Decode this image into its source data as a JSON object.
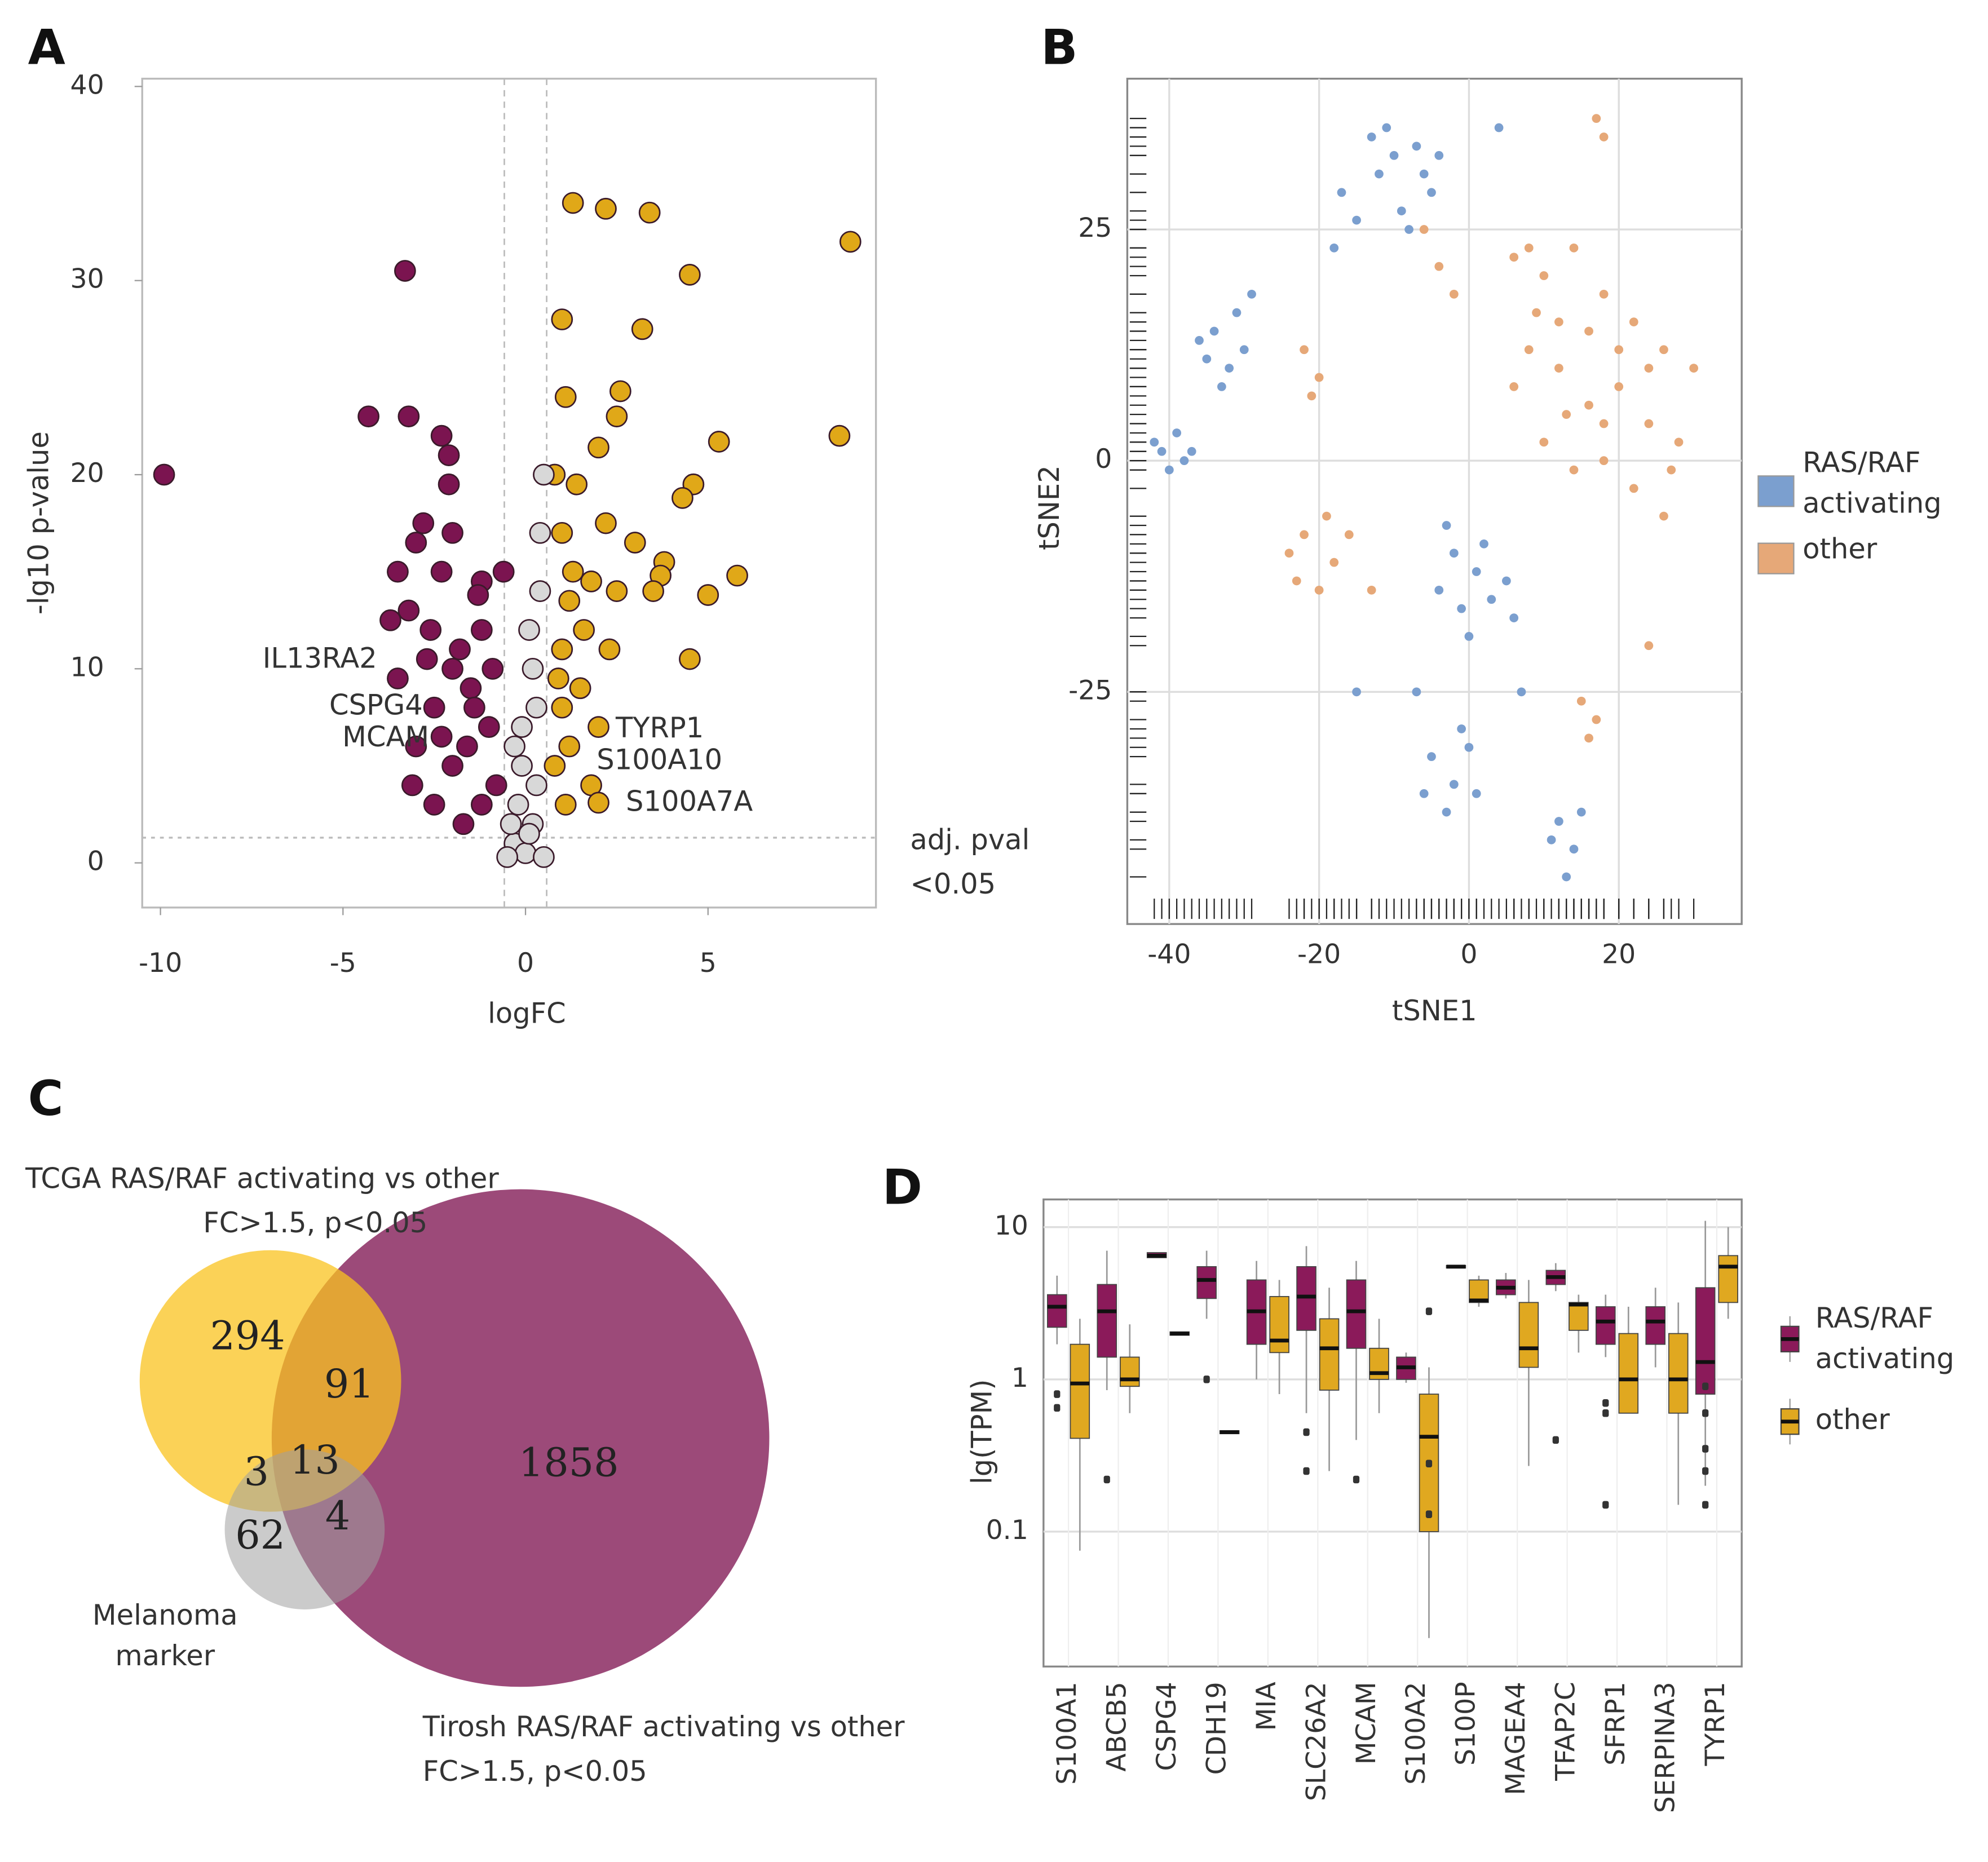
{
  "chart_data": [
    {
      "type": "scatter",
      "panel": "A",
      "x_label": "logFC",
      "y_label": "-lg10 p-value",
      "xlim": [
        -10.5,
        9.6
      ],
      "ylim": [
        -2.3,
        40.4
      ],
      "xticks": [
        -10,
        -5,
        0,
        5
      ],
      "yticks": [
        0,
        10,
        20,
        30,
        40
      ],
      "vlines": [
        -0.58,
        0.58
      ],
      "hline": 1.3,
      "annotations": [
        "IL13RA2",
        "CSPG4",
        "MCAM",
        "TYRP1",
        "S100A10",
        "S100A7A",
        "adj. pval",
        "<0.05"
      ],
      "series": [
        {
          "color": "#7b1450",
          "x": [
            -9.9,
            -3.3,
            -4.3,
            -3.2,
            -2.3,
            -2.1,
            -2.1,
            -2.8,
            -3.0,
            -2.0,
            -3.5,
            -2.3,
            -0.6,
            -1.2,
            -1.3,
            -3.2,
            -3.7,
            -2.6,
            -3.5,
            -2.0,
            -2.5,
            -1.5,
            -3.0,
            -2.0,
            -3.1,
            -2.5,
            -1.2,
            -1.6,
            -1.0,
            -1.8,
            -1.2,
            -0.9,
            -2.3,
            -1.7,
            -0.8,
            -2.7,
            -1.4
          ],
          "y": [
            20,
            30.5,
            23,
            23,
            22,
            21,
            19.5,
            17.5,
            16.5,
            17,
            15,
            15,
            15,
            14.5,
            13.8,
            13,
            12.5,
            12,
            9.5,
            10,
            8,
            9,
            6,
            5,
            4,
            3,
            3,
            6,
            7,
            11,
            12,
            10,
            6.5,
            2,
            4,
            10.5,
            8
          ]
        },
        {
          "color": "#e0a818",
          "x": [
            1.3,
            2.2,
            3.4,
            8.9,
            4.5,
            1.0,
            3.2,
            2.6,
            1.1,
            2.5,
            8.6,
            5.3,
            2.0,
            0.8,
            4.6,
            4.3,
            1.4,
            2.2,
            1.0,
            3.0,
            3.8,
            3.7,
            5.8,
            2.5,
            1.8,
            3.5,
            5.0,
            1.2,
            4.5,
            1.6,
            2.3,
            1.0,
            1.5,
            1.0,
            2.0,
            1.2,
            1.8,
            1.1,
            0.8,
            2.0,
            0.9,
            1.3
          ],
          "y": [
            34,
            33.7,
            33.5,
            32,
            30.3,
            28,
            27.5,
            24.3,
            24,
            23,
            22,
            21.7,
            21.4,
            20,
            19.5,
            18.8,
            19.5,
            17.5,
            17,
            16.5,
            15.5,
            14.8,
            14.8,
            14,
            14.5,
            14,
            13.8,
            13.5,
            10.5,
            12,
            11,
            11,
            9,
            8,
            7,
            6,
            4,
            3,
            5,
            3.1,
            9.5,
            15
          ]
        },
        {
          "color": "#d8d8d8",
          "x": [
            -0.3,
            0.2,
            -0.1,
            0.3,
            0.1,
            -0.2,
            0.4,
            0.5,
            0.0,
            -0.4,
            0.3,
            0.2,
            -0.1,
            0.4,
            -0.3,
            0.1,
            -0.5,
            0.5
          ],
          "y": [
            1,
            2,
            5,
            8,
            12,
            3,
            17,
            20,
            0.5,
            2,
            4,
            10,
            7,
            14,
            6,
            1.5,
            0.3,
            0.3
          ]
        }
      ]
    },
    {
      "type": "scatter",
      "panel": "B",
      "x_label": "tSNE1",
      "y_label": "tSNE2",
      "rug": true,
      "grid": true,
      "xlim": [
        -45.6,
        36.4
      ],
      "ylim": [
        -50.1,
        41.3
      ],
      "xticks": [
        -40,
        -20,
        0,
        20
      ],
      "yticks": [
        -25,
        0,
        25
      ],
      "series": [
        {
          "name": "RAS/RAF activating",
          "color": "#7b9fcf",
          "x": [
            -10,
            -7,
            -5,
            -9,
            -12,
            -6,
            -8,
            -11,
            -4,
            -13,
            -17,
            -15,
            -18,
            -34,
            -31,
            -32,
            -35,
            -30,
            -33,
            -29,
            -36,
            -41,
            -39,
            -38,
            -40,
            -37,
            -42,
            -2,
            1,
            3,
            -1,
            2,
            5,
            -4,
            0,
            6,
            -3,
            -5,
            -2,
            0,
            -3,
            1,
            -6,
            -1,
            12,
            14,
            13,
            11,
            15,
            4,
            -15,
            -7,
            7
          ],
          "y": [
            33,
            34,
            29,
            27,
            31,
            31,
            25,
            36,
            33,
            35,
            29,
            26,
            23,
            14,
            16,
            10,
            11,
            12,
            8,
            18,
            13,
            1,
            3,
            0,
            -1,
            1,
            2,
            -10,
            -12,
            -15,
            -16,
            -9,
            -13,
            -14,
            -19,
            -17,
            -7,
            -32,
            -35,
            -31,
            -38,
            -36,
            -36,
            -29,
            -39,
            -42,
            -45,
            -41,
            -38,
            36,
            -25,
            -25,
            -25
          ]
        },
        {
          "name": "other",
          "color": "#e6a878",
          "x": [
            10,
            14,
            18,
            22,
            26,
            30,
            8,
            12,
            16,
            20,
            24,
            28,
            10,
            14,
            18,
            22,
            26,
            6,
            12,
            20,
            16,
            24,
            18,
            13,
            9,
            27,
            -22,
            -18,
            -20,
            -24,
            -16,
            -19,
            -23,
            -22,
            -20,
            -21,
            15,
            17,
            16,
            17,
            18,
            -4,
            -2,
            -6,
            6,
            8,
            -13,
            24
          ],
          "y": [
            20,
            23,
            18,
            15,
            12,
            10,
            12,
            10,
            6,
            8,
            4,
            2,
            2,
            -1,
            0,
            -3,
            -6,
            8,
            15,
            12,
            14,
            10,
            4,
            5,
            16,
            -1,
            -8,
            -11,
            -14,
            -10,
            -8,
            -6,
            -13,
            12,
            9,
            7,
            -26,
            -28,
            -30,
            37,
            35,
            21,
            18,
            25,
            22,
            23,
            -14,
            -20
          ]
        }
      ]
    },
    {
      "type": "venn",
      "panel": "C",
      "sets": [
        {
          "name": "TCGA RAS/RAF activating vs other",
          "criteria": "FC>1.5, p<0.05",
          "color": "#f9c31f"
        },
        {
          "name": "Tirosh RAS/RAF activating vs other",
          "criteria": "FC>1.5, p<0.05",
          "color": "#8b2a62"
        },
        {
          "name": "Melanoma marker",
          "color": "#a0a0a0"
        }
      ],
      "values": [
        294,
        91,
        3,
        13,
        62,
        4,
        1858
      ]
    },
    {
      "type": "box",
      "panel": "D",
      "y_label": "lg(TPM)",
      "ylog": true,
      "grid": true,
      "ylim": [
        0.013,
        15.2
      ],
      "yticks": [
        0.1,
        1,
        10
      ],
      "categories": [
        "S100A1",
        "ABCB5",
        "CSPG4",
        "CDH19",
        "MIA",
        "SLC26A2",
        "MCAM",
        "S100A2",
        "S100P",
        "MAGEA4",
        "TFAP2C",
        "SFRP1",
        "SERPINA3",
        "TYRP1"
      ],
      "series": [
        {
          "name": "RAS/RAF activating",
          "color": "#8b1a5a",
          "min": [
            1.7,
            0.85,
            6.3,
            2.5,
            1.0,
            0.6,
            0.4,
            0.95,
            5.4,
            3.4,
            3.8,
            1.4,
            1.2,
            0.2
          ],
          "q1": [
            2.2,
            1.4,
            6.3,
            3.4,
            1.7,
            2.1,
            1.6,
            1.0,
            5.4,
            3.6,
            4.2,
            1.7,
            1.7,
            0.8
          ],
          "median": [
            3.0,
            2.8,
            6.5,
            4.5,
            2.8,
            3.5,
            2.8,
            1.2,
            5.5,
            4.0,
            4.7,
            2.4,
            2.4,
            1.3
          ],
          "q3": [
            3.6,
            4.2,
            6.8,
            5.5,
            4.5,
            5.5,
            4.5,
            1.4,
            5.6,
            4.5,
            5.2,
            3.0,
            3.0,
            4.0
          ],
          "max": [
            4.8,
            7.0,
            6.8,
            7.0,
            6.0,
            7.5,
            6.0,
            1.5,
            5.6,
            5.0,
            5.8,
            3.6,
            4.0,
            11
          ],
          "outliers": [
            [
              0.8,
              0.65
            ],
            [
              0.22
            ],
            [],
            [
              1.0
            ],
            [],
            [
              0.45,
              0.25
            ],
            [
              0.22
            ],
            [],
            [],
            [],
            [
              0.4
            ],
            [
              0.7,
              0.6,
              0.15
            ],
            [],
            [
              0.9,
              0.6,
              0.35,
              0.25,
              0.15
            ]
          ]
        },
        {
          "name": "other",
          "color": "#e0a820",
          "min": [
            0.075,
            0.6,
            1.95,
            0.44,
            0.8,
            0.25,
            0.6,
            0.02,
            3.0,
            0.27,
            1.5,
            0.6,
            0.15,
            2.5
          ],
          "q1": [
            0.41,
            0.9,
            1.95,
            0.44,
            1.5,
            0.85,
            1.0,
            0.1,
            3.2,
            1.2,
            2.1,
            0.6,
            0.6,
            3.2
          ],
          "median": [
            0.94,
            1.0,
            2.0,
            0.45,
            1.8,
            1.6,
            1.1,
            0.42,
            3.3,
            1.6,
            3.1,
            1.0,
            1.0,
            5.5
          ],
          "q3": [
            1.7,
            1.4,
            2.05,
            0.46,
            3.5,
            2.5,
            1.6,
            0.8,
            4.5,
            3.2,
            3.2,
            2.0,
            2.0,
            6.5
          ],
          "max": [
            2.5,
            2.3,
            2.05,
            0.46,
            4.5,
            4.0,
            2.5,
            1.2,
            4.8,
            4.5,
            3.6,
            3.0,
            3.2,
            10
          ],
          "outliers": [
            [],
            [],
            [],
            [],
            [],
            [],
            [],
            [
              2.8,
              0.28,
              0.13
            ],
            [],
            [],
            [],
            [],
            [],
            []
          ]
        }
      ]
    }
  ]
}
